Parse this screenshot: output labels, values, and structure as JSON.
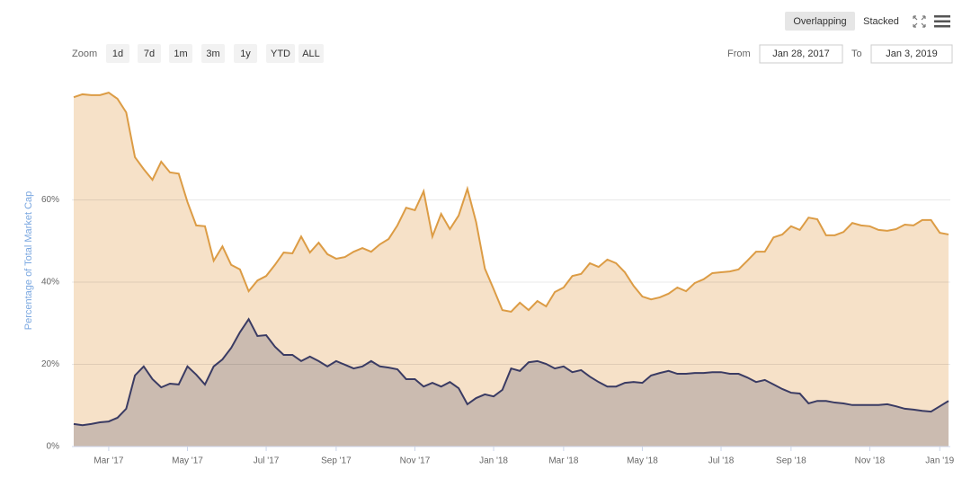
{
  "controls": {
    "zoom_label": "Zoom",
    "zoom_buttons": [
      "1d",
      "7d",
      "1m",
      "3m",
      "1y",
      "YTD",
      "ALL"
    ],
    "from_label": "From",
    "from_value": "Jan 28, 2017",
    "to_label": "To",
    "to_value": "Jan 3, 2019",
    "mode_buttons": [
      "Overlapping",
      "Stacked"
    ]
  },
  "chart_data": {
    "type": "area",
    "y_label": "Percentage of Total Market Cap",
    "categories": [
      null,
      null,
      null,
      null,
      "Mar '17",
      null,
      null,
      null,
      null,
      null,
      null,
      null,
      null,
      "May '17",
      null,
      null,
      null,
      null,
      null,
      null,
      null,
      null,
      "Jul '17",
      null,
      null,
      null,
      null,
      null,
      null,
      null,
      "Sep '17",
      null,
      null,
      null,
      null,
      null,
      null,
      null,
      null,
      "Nov '17",
      null,
      null,
      null,
      null,
      null,
      null,
      null,
      null,
      "Jan '18",
      null,
      null,
      null,
      null,
      null,
      null,
      null,
      "Mar '18",
      null,
      null,
      null,
      null,
      null,
      null,
      null,
      null,
      "May '18",
      null,
      null,
      null,
      null,
      null,
      null,
      null,
      null,
      "Jul '18",
      null,
      null,
      null,
      null,
      null,
      null,
      null,
      "Sep '18",
      null,
      null,
      null,
      null,
      null,
      null,
      null,
      null,
      "Nov '18",
      null,
      null,
      null,
      null,
      null,
      null,
      null,
      "Jan '19",
      null
    ],
    "series": [
      {
        "color": "#dc9c45",
        "fill": "#f6e1c8",
        "values": [
          85.0,
          85.7,
          85.5,
          85.5,
          86.1,
          84.6,
          81.3,
          70.4,
          67.5,
          64.9,
          69.3,
          66.7,
          66.4,
          59.5,
          53.8,
          53.6,
          45.2,
          48.7,
          44.2,
          43.1,
          37.8,
          40.4,
          41.5,
          44.2,
          47.2,
          47.0,
          51.1,
          47.2,
          49.6,
          46.8,
          45.7,
          46.1,
          47.4,
          48.3,
          47.4,
          49.2,
          50.5,
          53.8,
          58.1,
          57.5,
          62.1,
          51.1,
          56.6,
          52.9,
          56.2,
          62.7,
          54.6,
          43.3,
          38.3,
          33.2,
          32.8,
          35.0,
          33.2,
          35.4,
          34.1,
          37.6,
          38.7,
          41.5,
          42.0,
          44.6,
          43.7,
          45.5,
          44.6,
          42.4,
          39.1,
          36.5,
          35.8,
          36.3,
          37.2,
          38.7,
          37.8,
          39.8,
          40.7,
          42.2,
          42.4,
          42.6,
          43.1,
          45.2,
          47.4,
          47.4,
          50.9,
          51.6,
          53.6,
          52.7,
          55.7,
          55.3,
          51.4,
          51.4,
          52.2,
          54.4,
          53.8,
          53.6,
          52.7,
          52.5,
          52.9,
          54.0,
          53.8,
          55.1,
          55.1,
          52.0,
          51.6
        ]
      },
      {
        "color": "#3a3b63",
        "fill": "#cbbbb0",
        "values": [
          5.5,
          5.2,
          5.5,
          5.9,
          6.1,
          7.0,
          9.2,
          17.3,
          19.5,
          16.4,
          14.4,
          15.3,
          15.1,
          19.5,
          17.5,
          15.1,
          19.5,
          21.2,
          24.0,
          27.8,
          31.0,
          26.9,
          27.1,
          24.3,
          22.3,
          22.3,
          20.8,
          21.9,
          20.8,
          19.5,
          20.8,
          19.9,
          19.0,
          19.5,
          20.8,
          19.5,
          19.2,
          18.8,
          16.4,
          16.4,
          14.6,
          15.5,
          14.6,
          15.7,
          14.2,
          10.3,
          11.8,
          12.7,
          12.2,
          13.8,
          19.0,
          18.4,
          20.5,
          20.8,
          20.1,
          19.0,
          19.5,
          18.1,
          18.6,
          17.0,
          15.7,
          14.6,
          14.6,
          15.5,
          15.7,
          15.5,
          17.3,
          17.9,
          18.4,
          17.7,
          17.7,
          17.9,
          17.9,
          18.1,
          18.1,
          17.7,
          17.7,
          16.8,
          15.7,
          16.2,
          15.1,
          14.0,
          13.1,
          12.9,
          10.5,
          11.1,
          11.1,
          10.7,
          10.5,
          10.1,
          10.1,
          10.1,
          10.1,
          10.3,
          9.8,
          9.2,
          9.0,
          8.7,
          8.5,
          9.8,
          11.1
        ]
      }
    ],
    "ylim": [
      0,
      87
    ],
    "yticks": [
      {
        "value": 0,
        "label": "0%"
      },
      {
        "value": 20,
        "label": "20%"
      },
      {
        "value": 40,
        "label": "40%"
      },
      {
        "value": 60,
        "label": "60%"
      }
    ],
    "grid": true
  }
}
